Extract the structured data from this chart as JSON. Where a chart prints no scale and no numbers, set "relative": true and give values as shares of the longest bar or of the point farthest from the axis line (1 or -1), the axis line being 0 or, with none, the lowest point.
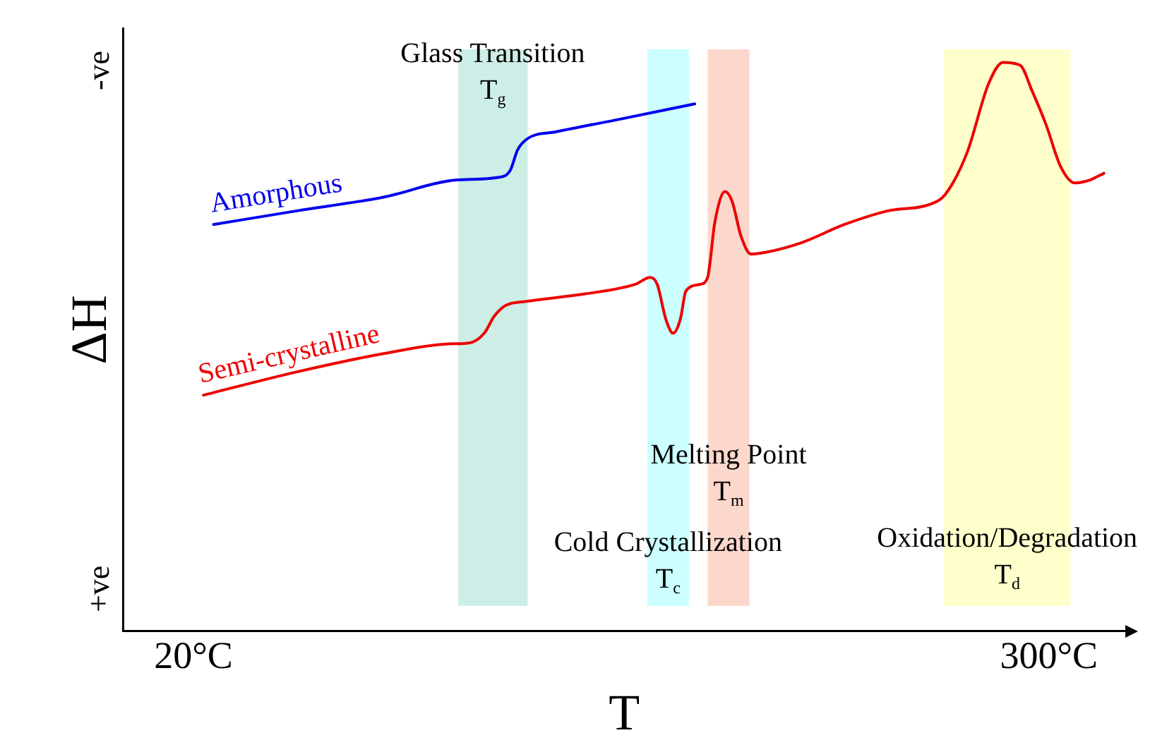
{
  "chart_data": {
    "type": "line",
    "relative": true,
    "xlabel": "T",
    "ylabel": "ΔH",
    "xlim": [
      -3,
      325
    ],
    "xticks": [
      {
        "value": 20,
        "label": "20°C"
      },
      {
        "value": 300,
        "label": "300°C"
      }
    ],
    "grid": false,
    "legend": false,
    "marker": "none",
    "line_style": "solid",
    "series": [
      {
        "name": "Amorphous",
        "color": "#0000ee",
        "x": [
          26.6,
          53.9,
          82.2,
          105.8,
          120,
          123.7,
          126.1,
          129.4,
          138.8,
          157.7,
          184.1
        ],
        "values": [
          0.715,
          0.739,
          0.763,
          0.793,
          0.798,
          0.81,
          0.846,
          0.866,
          0.878,
          0.898,
          0.927
        ]
      },
      {
        "name": "Semi-crystalline",
        "color": "#ee0000",
        "x": [
          23.3,
          53.9,
          82.2,
          103.5,
          110.5,
          115.2,
          118.5,
          122.3,
          129.4,
          148.2,
          164.7,
          169.5,
          171.8,
          174.6,
          177,
          179.4,
          181.2,
          186,
          188.3,
          190.7,
          194,
          196.3,
          199.2,
          202.5,
          207.2,
          219,
          233.1,
          247.3,
          261.4,
          266.1,
          273.2,
          280.3,
          285,
          290.6,
          294.4,
          299.1,
          303.8,
          308.5,
          313.3,
          318
        ],
        "values": [
          0.415,
          0.456,
          0.488,
          0.505,
          0.507,
          0.524,
          0.554,
          0.573,
          0.58,
          0.593,
          0.61,
          0.622,
          0.61,
          0.549,
          0.524,
          0.549,
          0.598,
          0.61,
          0.622,
          0.72,
          0.773,
          0.756,
          0.695,
          0.663,
          0.666,
          0.683,
          0.715,
          0.739,
          0.751,
          0.768,
          0.841,
          0.963,
          1,
          0.995,
          0.951,
          0.89,
          0.817,
          0.788,
          0.793,
          0.805
        ]
      }
    ],
    "bands": [
      {
        "axis": "x",
        "from": 106.7,
        "to": 129.4,
        "color": "#cdeee6",
        "label": "Glass Transition\nT$_{g}$"
      },
      {
        "axis": "x",
        "from": 168.5,
        "to": 182.2,
        "color": "#ccffff",
        "label": "Cold Crystallization\nT$_{c}$"
      },
      {
        "axis": "x",
        "from": 188.3,
        "to": 202,
        "color": "#fbd7cc",
        "label": "Melting Point\nT$_{m}$"
      },
      {
        "axis": "x",
        "from": 265.6,
        "to": 307.1,
        "color": "#ffffcc",
        "label": "Oxidation/Degradation\nT$_{d}$"
      }
    ],
    "annotations": [
      "-ve",
      "+ve"
    ]
  }
}
